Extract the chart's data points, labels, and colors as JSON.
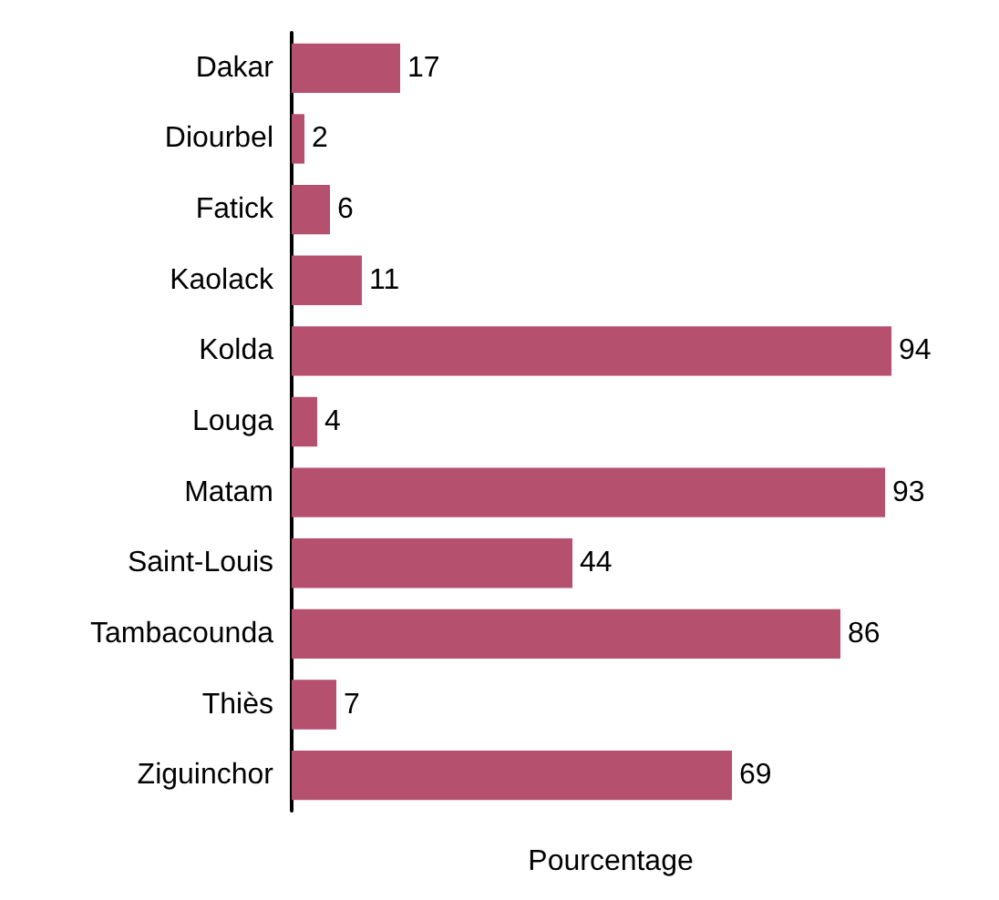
{
  "chart_data": {
    "type": "bar",
    "orientation": "horizontal",
    "xlabel": "Pourcentage",
    "categories": [
      "Dakar",
      "Diourbel",
      "Fatick",
      "Kaolack",
      "Kolda",
      "Louga",
      "Matam",
      "Saint-Louis",
      "Tambacounda",
      "Thiès",
      "Ziguinchor"
    ],
    "values": [
      17,
      2,
      6,
      11,
      94,
      4,
      93,
      44,
      86,
      7,
      69
    ],
    "color": "#b5506f",
    "data_labels": true,
    "tick_labels": "y"
  }
}
